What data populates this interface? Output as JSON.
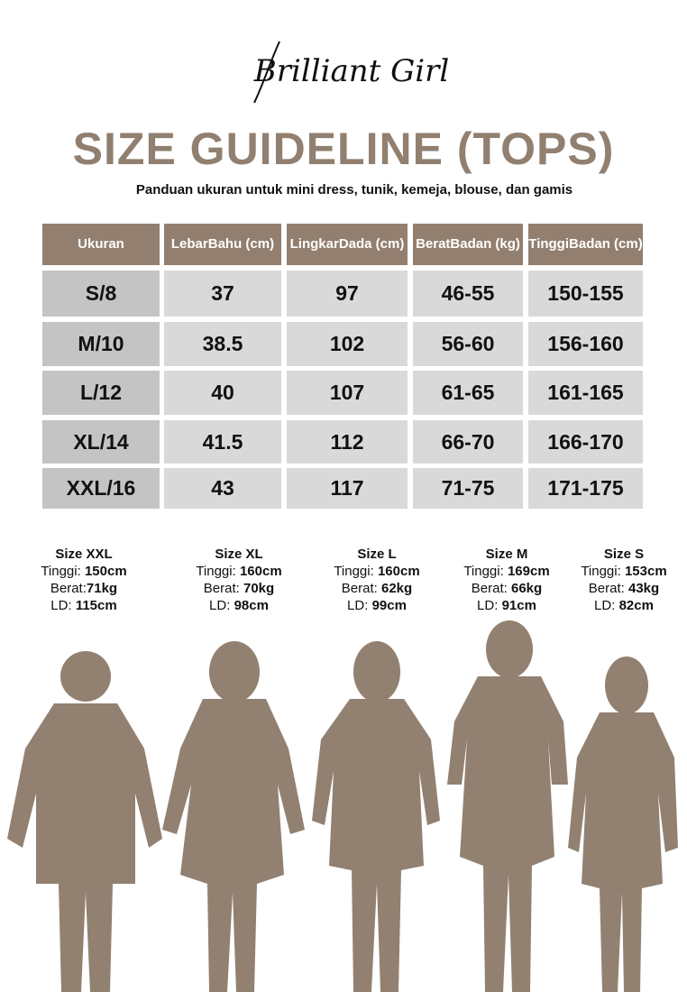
{
  "brand": "Brilliant Girl",
  "title": "SIZE GUIDELINE (TOPS)",
  "subtitle": "Panduan ukuran untuk mini dress, tunik, kemeja, blouse, dan gamis",
  "colors": {
    "accent": "#937f6f",
    "cell": "#d9d9d9",
    "first_cell": "#c4c4c4",
    "silhouette": "#928171"
  },
  "table": {
    "headers": [
      [
        "Ukuran"
      ],
      [
        "Lebar",
        "Bahu (cm)"
      ],
      [
        "Lingkar",
        "Dada (cm)"
      ],
      [
        "Berat",
        "Badan (kg)"
      ],
      [
        "Tinggi",
        "Badan (cm)"
      ]
    ],
    "rows": [
      [
        "S/8",
        "37",
        "97",
        "46-55",
        "150-155"
      ],
      [
        "M/10",
        "38.5",
        "102",
        "56-60",
        "156-160"
      ],
      [
        "L/12",
        "40",
        "107",
        "61-65",
        "161-165"
      ],
      [
        "XL/14",
        "41.5",
        "112",
        "66-70",
        "166-170"
      ],
      [
        "XXL/16",
        "43",
        "117",
        "71-75",
        "171-175"
      ]
    ]
  },
  "models": [
    {
      "size": "Size XXL",
      "tinggi_label": "Tinggi: ",
      "tinggi": "150cm",
      "berat_label": "Berat:",
      "berat": "71kg",
      "ld_label": "LD: ",
      "ld": "115cm"
    },
    {
      "size": "Size XL",
      "tinggi_label": "Tinggi: ",
      "tinggi": "160cm",
      "berat_label": "Berat: ",
      "berat": "70kg",
      "ld_label": "LD: ",
      "ld": "98cm"
    },
    {
      "size": "Size L",
      "tinggi_label": "Tinggi: ",
      "tinggi": "160cm",
      "berat_label": "Berat: ",
      "berat": "62kg",
      "ld_label": "LD: ",
      "ld": "99cm"
    },
    {
      "size": "Size M",
      "tinggi_label": "Tinggi: ",
      "tinggi": "169cm",
      "berat_label": "Berat: ",
      "berat": "66kg",
      "ld_label": "LD: ",
      "ld": "91cm"
    },
    {
      "size": "Size S",
      "tinggi_label": "Tinggi: ",
      "tinggi": "153cm",
      "berat_label": "Berat: ",
      "berat": "43kg",
      "ld_label": "LD: ",
      "ld": "82cm"
    }
  ]
}
